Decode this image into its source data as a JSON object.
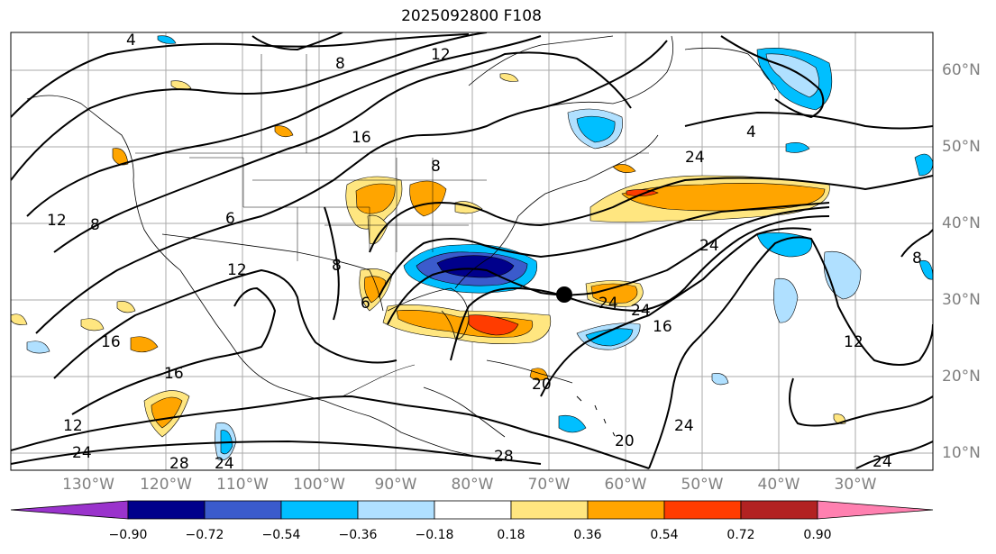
{
  "title": "2025092800 F108",
  "lat_labels": [
    "60°N",
    "50°N",
    "40°N",
    "30°N",
    "20°N",
    "10°N"
  ],
  "lon_labels": [
    "130°W",
    "120°W",
    "110°W",
    "100°W",
    "90°W",
    "80°W",
    "70°W",
    "60°W",
    "50°W",
    "40°W",
    "30°W"
  ],
  "contour_labels": [
    "4",
    "8",
    "12",
    "16",
    "8",
    "12",
    "8",
    "6",
    "12",
    "16",
    "16",
    "12",
    "24",
    "28",
    "24",
    "8",
    "6",
    "24",
    "24",
    "16",
    "4",
    "24",
    "12",
    "24",
    "20",
    "28",
    "20",
    "24",
    "8",
    "24"
  ],
  "colorbar": {
    "ticks": [
      "−0.90",
      "−0.72",
      "−0.54",
      "−0.36",
      "−0.18",
      "0.18",
      "0.36",
      "0.54",
      "0.72",
      "0.90"
    ],
    "colors": [
      "#9a33cc",
      "#00008b",
      "#3b5bcc",
      "#00bfff",
      "#b0e0ff",
      "#ffffff",
      "#ffe680",
      "#ffa500",
      "#ff3c00",
      "#b22222",
      "#ff80b0"
    ]
  },
  "marker": "storm-center-dot"
}
